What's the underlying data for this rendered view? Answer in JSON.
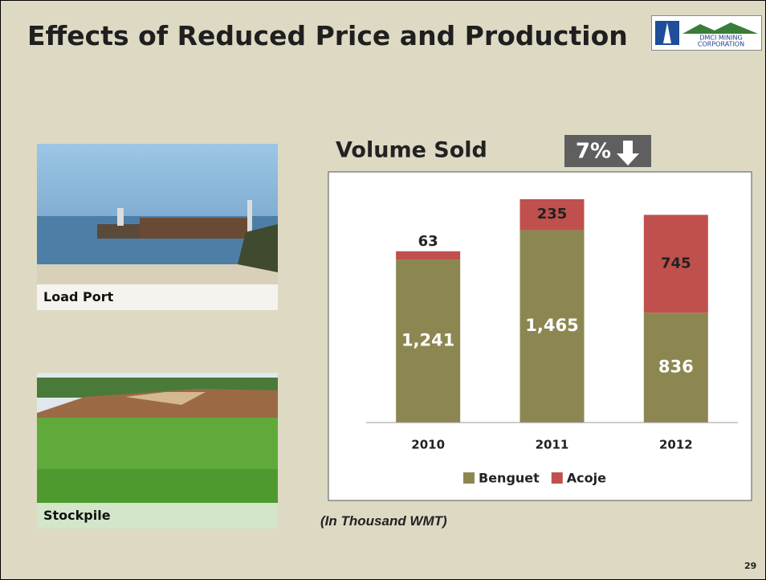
{
  "header": {
    "title": "Effects of Reduced Price and Production",
    "logo": [
      "DMCI MINING",
      "CORPORATION"
    ]
  },
  "photos": [
    {
      "label": "Load Port"
    },
    {
      "label": "Stockpile"
    }
  ],
  "chart_data": {
    "type": "stacked-bar",
    "title": "Volume Sold",
    "badge": "7%",
    "categories": [
      "2010",
      "2011",
      "2012"
    ],
    "series": [
      {
        "name": "Benguet",
        "color": "#8c8751",
        "values": [
          1241,
          1465,
          836
        ],
        "value_labels": [
          "1,241",
          "1,465",
          "836"
        ]
      },
      {
        "name": "Acoje",
        "color": "#c0504d",
        "values": [
          63,
          235,
          745
        ],
        "value_labels": [
          "63",
          "235",
          "745"
        ]
      }
    ],
    "legend": "bottom"
  },
  "note": "(In Thousand WMT)",
  "page_number": "29"
}
